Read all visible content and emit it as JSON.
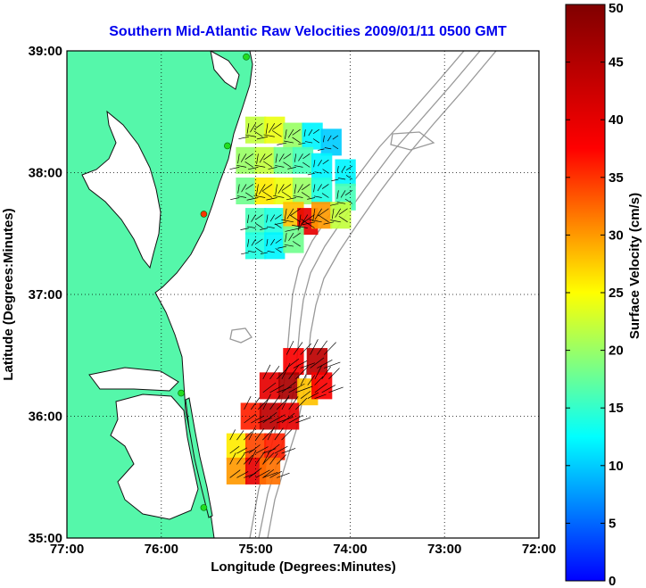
{
  "chart_data": {
    "type": "heatmap",
    "title": "Southern Mid-Atlantic Raw Velocities 2009/01/11 0500 GMT",
    "xlabel": "Longitude (Degrees:Minutes)",
    "ylabel": "Latitude (Degrees:Minutes)",
    "x_ticks": [
      {
        "value": -77,
        "label": "77:00"
      },
      {
        "value": -76,
        "label": "76:00"
      },
      {
        "value": -75,
        "label": "75:00"
      },
      {
        "value": -74,
        "label": "74:00"
      },
      {
        "value": -73,
        "label": "73:00"
      },
      {
        "value": -72,
        "label": "72:00"
      }
    ],
    "y_ticks": [
      {
        "value": 35,
        "label": "35:00"
      },
      {
        "value": 36,
        "label": "36:00"
      },
      {
        "value": 37,
        "label": "37:00"
      },
      {
        "value": 38,
        "label": "38:00"
      },
      {
        "value": 39,
        "label": "39:00"
      }
    ],
    "xlim": [
      -77,
      -72
    ],
    "ylim": [
      35,
      39
    ],
    "grid": true,
    "colorbar": {
      "label": "Surface Velocity (cm/s)",
      "min": 0,
      "max": 50,
      "ticks": [
        "0",
        "5",
        "10",
        "15",
        "20",
        "25",
        "30",
        "35",
        "40",
        "45",
        "50"
      ]
    },
    "land_color": "#55f7aa",
    "water_color": "#ffffff",
    "bathymetry_color": "#999999",
    "stations": [
      {
        "lon": -75.1,
        "lat": 38.95,
        "color": "#22dd22"
      },
      {
        "lon": -75.3,
        "lat": 38.22,
        "color": "#22dd22"
      },
      {
        "lon": -75.55,
        "lat": 37.66,
        "color": "#ff3300"
      },
      {
        "lon": -75.79,
        "lat": 36.19,
        "color": "#22dd22"
      },
      {
        "lon": -75.55,
        "lat": 35.25,
        "color": "#22dd22"
      }
    ],
    "velocity_regions": [
      {
        "name_hint": "north",
        "lon_range": [
          -75.15,
          -73.8
        ],
        "lat_range": [
          37.3,
          38.45
        ],
        "cells": [
          {
            "lon": -75.0,
            "lat": 38.35,
            "speed": 22
          },
          {
            "lon": -74.8,
            "lat": 38.35,
            "speed": 24
          },
          {
            "lon": -74.6,
            "lat": 38.3,
            "speed": 20
          },
          {
            "lon": -74.4,
            "lat": 38.3,
            "speed": 12
          },
          {
            "lon": -74.2,
            "lat": 38.25,
            "speed": 10
          },
          {
            "lon": -75.1,
            "lat": 38.1,
            "speed": 20
          },
          {
            "lon": -74.9,
            "lat": 38.1,
            "speed": 22
          },
          {
            "lon": -74.7,
            "lat": 38.1,
            "speed": 18
          },
          {
            "lon": -74.5,
            "lat": 38.1,
            "speed": 16
          },
          {
            "lon": -74.3,
            "lat": 38.05,
            "speed": 12
          },
          {
            "lon": -74.05,
            "lat": 38.0,
            "speed": 12
          },
          {
            "lon": -75.1,
            "lat": 37.85,
            "speed": 18
          },
          {
            "lon": -74.9,
            "lat": 37.85,
            "speed": 26
          },
          {
            "lon": -74.7,
            "lat": 37.85,
            "speed": 24
          },
          {
            "lon": -74.5,
            "lat": 37.85,
            "speed": 20
          },
          {
            "lon": -74.3,
            "lat": 37.85,
            "speed": 14
          },
          {
            "lon": -74.05,
            "lat": 37.8,
            "speed": 16
          },
          {
            "lon": -75.0,
            "lat": 37.6,
            "speed": 16
          },
          {
            "lon": -74.8,
            "lat": 37.6,
            "speed": 14
          },
          {
            "lon": -74.6,
            "lat": 37.65,
            "speed": 28
          },
          {
            "lon": -74.45,
            "lat": 37.6,
            "speed": 40
          },
          {
            "lon": -74.3,
            "lat": 37.65,
            "speed": 30
          },
          {
            "lon": -74.1,
            "lat": 37.65,
            "speed": 22
          },
          {
            "lon": -75.0,
            "lat": 37.4,
            "speed": 14
          },
          {
            "lon": -74.8,
            "lat": 37.4,
            "speed": 12
          },
          {
            "lon": -74.6,
            "lat": 37.45,
            "speed": 18
          }
        ]
      },
      {
        "name_hint": "south",
        "lon_range": [
          -75.3,
          -74.2
        ],
        "lat_range": [
          35.4,
          36.5
        ],
        "cells": [
          {
            "lon": -74.6,
            "lat": 36.45,
            "speed": 38
          },
          {
            "lon": -74.35,
            "lat": 36.45,
            "speed": 44
          },
          {
            "lon": -74.85,
            "lat": 36.25,
            "speed": 40
          },
          {
            "lon": -74.65,
            "lat": 36.25,
            "speed": 46
          },
          {
            "lon": -74.45,
            "lat": 36.2,
            "speed": 28
          },
          {
            "lon": -74.3,
            "lat": 36.25,
            "speed": 38
          },
          {
            "lon": -75.05,
            "lat": 36.0,
            "speed": 36
          },
          {
            "lon": -74.85,
            "lat": 36.0,
            "speed": 44
          },
          {
            "lon": -74.65,
            "lat": 36.0,
            "speed": 40
          },
          {
            "lon": -75.2,
            "lat": 35.75,
            "speed": 26
          },
          {
            "lon": -75.0,
            "lat": 35.75,
            "speed": 34
          },
          {
            "lon": -74.8,
            "lat": 35.75,
            "speed": 36
          },
          {
            "lon": -75.2,
            "lat": 35.55,
            "speed": 30
          },
          {
            "lon": -75.0,
            "lat": 35.55,
            "speed": 40
          },
          {
            "lon": -74.85,
            "lat": 35.55,
            "speed": 32
          }
        ]
      }
    ]
  }
}
